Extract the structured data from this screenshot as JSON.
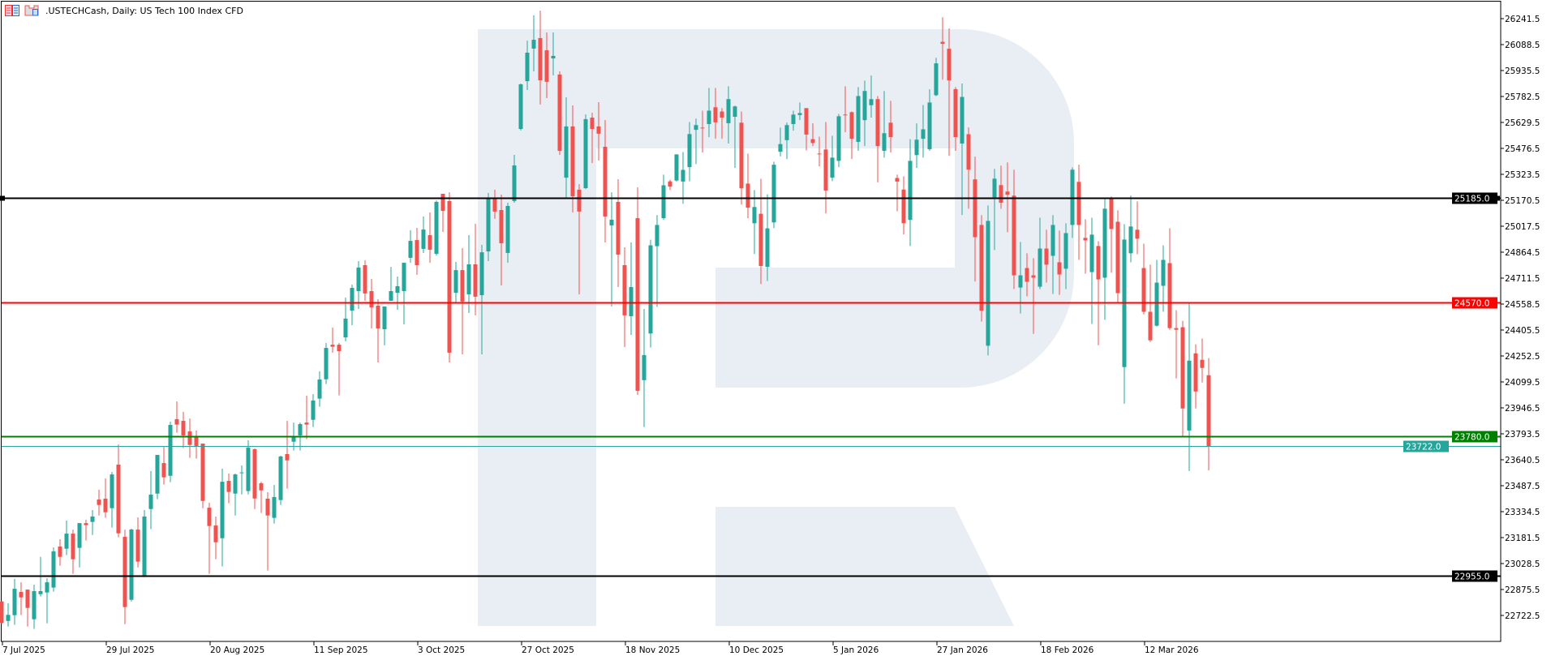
{
  "header": {
    "title": ".USTECHCash, Daily:  US Tech 100 Index CFD",
    "icons": [
      "chart-list-icon",
      "template-icon"
    ]
  },
  "colors": {
    "bull": "#26a69a",
    "bear": "#ef5350",
    "watermark": "#e9eef5",
    "line_black": "#000000",
    "line_red": "#ff0000",
    "line_green": "#008000",
    "line_current": "#26a69a"
  },
  "chart_data": {
    "type": "candlestick",
    "symbol": ".USTECHCash",
    "timeframe": "Daily",
    "description": "US Tech 100 Index CFD",
    "ylim": [
      22645.0,
      26318.0
    ],
    "grid": false,
    "y_ticks": [
      "26241.5",
      "26088.5",
      "25935.5",
      "25782.5",
      "25629.5",
      "25476.5",
      "25323.5",
      "25170.5",
      "25017.5",
      "24864.5",
      "24711.5",
      "24558.5",
      "24405.5",
      "24252.5",
      "24099.5",
      "23946.5",
      "23793.5",
      "23640.5",
      "23487.5",
      "23334.5",
      "23181.5",
      "23028.5",
      "22875.5",
      "22722.5"
    ],
    "x_ticks": [
      {
        "label": "7 Jul 2025",
        "bar": 0
      },
      {
        "label": "29 Jul 2025",
        "bar": 16
      },
      {
        "label": "20 Aug 2025",
        "bar": 32
      },
      {
        "label": "11 Sep 2025",
        "bar": 48
      },
      {
        "label": "3 Oct 2025",
        "bar": 64
      },
      {
        "label": "27 Oct 2025",
        "bar": 80
      },
      {
        "label": "18 Nov 2025",
        "bar": 96
      },
      {
        "label": "10 Dec 2025",
        "bar": 112
      },
      {
        "label": "5 Jan 2026",
        "bar": 128
      },
      {
        "label": "27 Jan 2026",
        "bar": 144
      },
      {
        "label": "18 Feb 2026",
        "bar": 160
      },
      {
        "label": "12 Mar 2026",
        "bar": 176
      }
    ],
    "levels": [
      {
        "value": 25185.0,
        "label": "25185.0",
        "color": "#000000",
        "style": "level-handles"
      },
      {
        "value": 24570.0,
        "label": "24570.0",
        "color": "#ff0000",
        "style": "level"
      },
      {
        "value": 23780.0,
        "label": "23780.0",
        "color": "#008000",
        "style": "level"
      },
      {
        "value": 23722.0,
        "label": "23722.0",
        "color": "#26a69a",
        "style": "current-price"
      },
      {
        "value": 22955.0,
        "label": "22955.0",
        "color": "#000000",
        "style": "level"
      }
    ],
    "ohlc_fields": [
      "open",
      "high",
      "low",
      "close"
    ],
    "candles": [
      [
        22805,
        22810,
        22670,
        22678
      ],
      [
        22690,
        22794,
        22657,
        22726
      ],
      [
        22724,
        22938,
        22667,
        22880
      ],
      [
        22861,
        22918,
        22724,
        22829
      ],
      [
        22875,
        22875,
        22657,
        22767
      ],
      [
        22700,
        22904,
        22643,
        22866
      ],
      [
        22848,
        23068,
        22834,
        22866
      ],
      [
        22858,
        22942,
        22676,
        22918
      ],
      [
        22887,
        23124,
        22863,
        23100
      ],
      [
        23129,
        23172,
        23016,
        23068
      ],
      [
        23116,
        23282,
        23078,
        23205
      ],
      [
        23205,
        23229,
        22968,
        23054
      ],
      [
        23121,
        23267,
        23006,
        23267
      ],
      [
        23267,
        23287,
        23164,
        23255
      ],
      [
        23274,
        23344,
        23197,
        23306
      ],
      [
        23406,
        23464,
        23312,
        23374
      ],
      [
        23411,
        23530,
        23298,
        23331
      ],
      [
        23355,
        23569,
        23240,
        23554
      ],
      [
        23612,
        23731,
        23183,
        23207
      ],
      [
        23186,
        23229,
        22671,
        22772
      ],
      [
        22815,
        23234,
        22805,
        23229
      ],
      [
        23229,
        23301,
        23006,
        23040
      ],
      [
        22949,
        23344,
        22949,
        23306
      ],
      [
        23350,
        23574,
        23231,
        23435
      ],
      [
        23441,
        23669,
        23408,
        23669
      ],
      [
        23621,
        23717,
        23494,
        23537
      ],
      [
        23546,
        23865,
        23508,
        23846
      ],
      [
        23880,
        23985,
        23800,
        23848
      ],
      [
        23870,
        23923,
        23709,
        23784
      ],
      [
        23808,
        23884,
        23652,
        23728
      ],
      [
        23774,
        23813,
        23647,
        23722
      ],
      [
        23736,
        23736,
        23355,
        23398
      ],
      [
        23358,
        23387,
        22968,
        23250
      ],
      [
        23253,
        23306,
        23054,
        23154
      ],
      [
        23178,
        23588,
        23011,
        23511
      ],
      [
        23516,
        23559,
        23384,
        23451
      ],
      [
        23441,
        23559,
        23312,
        23554
      ],
      [
        23563,
        23607,
        23436,
        23566
      ],
      [
        23456,
        23755,
        23436,
        23712
      ],
      [
        23703,
        23707,
        23350,
        23412
      ],
      [
        23502,
        23511,
        23327,
        23460
      ],
      [
        23411,
        23449,
        22987,
        23312
      ],
      [
        23298,
        23492,
        23264,
        23421
      ],
      [
        23403,
        23665,
        23374,
        23660
      ],
      [
        23674,
        23870,
        23470,
        23637
      ],
      [
        23747,
        23860,
        23695,
        23779
      ],
      [
        23784,
        23860,
        23695,
        23851
      ],
      [
        23860,
        24018,
        23762,
        23848
      ],
      [
        23876,
        24028,
        23833,
        23990
      ],
      [
        24001,
        24162,
        23953,
        24114
      ],
      [
        24115,
        24329,
        24087,
        24300
      ],
      [
        24319,
        24420,
        24272,
        24307
      ],
      [
        24319,
        24329,
        24020,
        24281
      ],
      [
        24362,
        24597,
        24339,
        24473
      ],
      [
        24520,
        24673,
        24434,
        24654
      ],
      [
        24635,
        24812,
        24530,
        24774
      ],
      [
        24788,
        24817,
        24578,
        24621
      ],
      [
        24635,
        24707,
        24415,
        24539
      ],
      [
        24549,
        24587,
        24214,
        24415
      ],
      [
        24410,
        24544,
        24315,
        24544
      ],
      [
        24578,
        24778,
        24578,
        24635
      ],
      [
        24625,
        24721,
        24525,
        24664
      ],
      [
        24635,
        24802,
        24439,
        24802
      ],
      [
        24831,
        24994,
        24802,
        24931
      ],
      [
        24936,
        25008,
        24731,
        24788
      ],
      [
        24884,
        25075,
        24860,
        24998
      ],
      [
        24965,
        25099,
        24802,
        24879
      ],
      [
        24855,
        25170,
        24845,
        25161
      ],
      [
        25209,
        25209,
        24984,
        25108
      ],
      [
        25166,
        25218,
        24214,
        24272
      ],
      [
        24625,
        24807,
        24563,
        24759
      ],
      [
        24759,
        24888,
        24262,
        24573
      ],
      [
        24616,
        24965,
        24506,
        24793
      ],
      [
        24793,
        25032,
        24492,
        24602
      ],
      [
        24611,
        24908,
        24262,
        24864
      ],
      [
        24869,
        25214,
        24812,
        25185
      ],
      [
        25180,
        25233,
        25061,
        25104
      ],
      [
        25113,
        25204,
        24668,
        24917
      ],
      [
        24860,
        25156,
        24802,
        25137
      ],
      [
        25166,
        25438,
        25156,
        25376
      ],
      [
        25591,
        25859,
        25582,
        25854
      ],
      [
        25873,
        26112,
        25821,
        26041
      ],
      [
        26065,
        26261,
        25931,
        26117
      ],
      [
        26127,
        26289,
        25735,
        25878
      ],
      [
        26055,
        26160,
        25773,
        25869
      ],
      [
        26007,
        26160,
        25907,
        26022
      ],
      [
        25912,
        25931,
        25438,
        25462
      ],
      [
        25304,
        25778,
        25185,
        25606
      ],
      [
        25606,
        25730,
        25099,
        25194
      ],
      [
        25233,
        25266,
        24616,
        25104
      ],
      [
        25242,
        25677,
        25237,
        25649
      ],
      [
        25658,
        25687,
        25390,
        25591
      ],
      [
        25606,
        25749,
        25405,
        25563
      ],
      [
        25486,
        25644,
        24922,
        25075
      ],
      [
        25022,
        25218,
        24544,
        25056
      ],
      [
        25161,
        25295,
        24659,
        24850
      ],
      [
        24788,
        24893,
        24305,
        24492
      ],
      [
        24487,
        24922,
        24377,
        24659
      ],
      [
        25065,
        25247,
        24023,
        24047
      ],
      [
        24110,
        24530,
        23833,
        24258
      ],
      [
        24385,
        24938,
        24303,
        24905
      ],
      [
        24900,
        25083,
        24542,
        25025
      ],
      [
        25065,
        25322,
        25055,
        25259
      ],
      [
        25282,
        25292,
        25231,
        25251
      ],
      [
        25287,
        25441,
        25281,
        25441
      ],
      [
        25281,
        25455,
        25150,
        25350
      ],
      [
        25366,
        25632,
        25282,
        25561
      ],
      [
        25586,
        25652,
        25384,
        25614
      ],
      [
        25599,
        25699,
        25452,
        25595
      ],
      [
        25620,
        25833,
        25543,
        25699
      ],
      [
        25719,
        25833,
        25533,
        25630
      ],
      [
        25694,
        25714,
        25533,
        25658
      ],
      [
        25625,
        25843,
        25505,
        25767
      ],
      [
        25663,
        25729,
        25361,
        25724
      ],
      [
        25628,
        25694,
        25145,
        25241
      ],
      [
        25269,
        25446,
        25065,
        25127
      ],
      [
        25035,
        25231,
        24854,
        25131
      ],
      [
        25091,
        25297,
        24677,
        24783
      ],
      [
        24778,
        25206,
        24695,
        25005
      ],
      [
        25040,
        25398,
        25007,
        25380
      ],
      [
        25457,
        25599,
        25429,
        25502
      ],
      [
        25525,
        25629,
        25413,
        25614
      ],
      [
        25620,
        25699,
        25581,
        25676
      ],
      [
        25673,
        25747,
        25643,
        25685
      ],
      [
        25714,
        25714,
        25465,
        25558
      ],
      [
        25531,
        25624,
        25490,
        25508
      ],
      [
        25446,
        25546,
        25371,
        25443
      ],
      [
        25470,
        25632,
        25093,
        25228
      ],
      [
        25304,
        25551,
        25284,
        25422
      ],
      [
        25403,
        25680,
        25366,
        25666
      ],
      [
        25676,
        25843,
        25572,
        25673
      ],
      [
        25690,
        25694,
        25414,
        25533
      ],
      [
        25515,
        25838,
        25462,
        25785
      ],
      [
        25643,
        25876,
        25490,
        25815
      ],
      [
        25731,
        25906,
        25658,
        25767
      ],
      [
        25767,
        25785,
        25276,
        25490
      ],
      [
        25462,
        25815,
        25422,
        25566
      ],
      [
        25628,
        25757,
        25452,
        25543
      ],
      [
        25302,
        25322,
        25106,
        25281
      ],
      [
        25234,
        25312,
        24969,
        25035
      ],
      [
        25055,
        25531,
        24901,
        25403
      ],
      [
        25437,
        25624,
        25361,
        25528
      ],
      [
        25533,
        25732,
        25422,
        25589
      ],
      [
        25472,
        25825,
        25462,
        25747
      ],
      [
        25790,
        26011,
        25785,
        25978
      ],
      [
        26105,
        26250,
        25881,
        26093
      ],
      [
        26064,
        26184,
        25432,
        25877
      ],
      [
        25826,
        25838,
        25462,
        25543
      ],
      [
        25505,
        25859,
        25084,
        25780
      ],
      [
        25560,
        25600,
        25121,
        25351
      ],
      [
        25294,
        25428,
        24692,
        24953
      ],
      [
        25025,
        25083,
        24455,
        24519
      ],
      [
        24313,
        25140,
        24256,
        25049
      ],
      [
        25188,
        25356,
        24877,
        25298
      ],
      [
        25260,
        25375,
        25121,
        25156
      ],
      [
        25222,
        25394,
        24982,
        25203
      ],
      [
        25198,
        25351,
        24647,
        24728
      ],
      [
        24656,
        24925,
        24503,
        24728
      ],
      [
        24771,
        24858,
        24604,
        24690
      ],
      [
        24728,
        24829,
        24383,
        24714
      ],
      [
        24661,
        25068,
        24647,
        24886
      ],
      [
        24886,
        24997,
        24685,
        24791
      ],
      [
        24843,
        25083,
        24618,
        25025
      ],
      [
        24805,
        24992,
        24613,
        24733
      ],
      [
        24767,
        25035,
        24647,
        24977
      ],
      [
        25025,
        25365,
        24949,
        25351
      ],
      [
        25279,
        25380,
        24819,
        25025
      ],
      [
        24949,
        25059,
        24738,
        24934
      ],
      [
        24747,
        25068,
        24441,
        24968
      ],
      [
        24901,
        24929,
        24316,
        24704
      ],
      [
        24714,
        25179,
        24465,
        25121
      ],
      [
        25183,
        25193,
        24743,
        25001
      ],
      [
        25044,
        25112,
        24570,
        24623
      ],
      [
        24187,
        25030,
        23971,
        24939
      ],
      [
        24858,
        25198,
        24805,
        25016
      ],
      [
        24997,
        25164,
        24853,
        24944
      ],
      [
        24771,
        24915,
        24498,
        24513
      ],
      [
        24513,
        24791,
        24335,
        24345
      ],
      [
        24431,
        24819,
        24426,
        24685
      ],
      [
        24666,
        24905,
        24513,
        24819
      ],
      [
        24800,
        25006,
        24407,
        24417
      ],
      [
        24417,
        24522,
        24120,
        24407
      ],
      [
        24422,
        24460,
        23780,
        23943
      ],
      [
        23813,
        24570,
        23574,
        24225
      ],
      [
        24268,
        24321,
        23943,
        24043
      ],
      [
        24230,
        24355,
        24096,
        24182
      ],
      [
        24139,
        24240,
        23578,
        23722
      ]
    ]
  }
}
